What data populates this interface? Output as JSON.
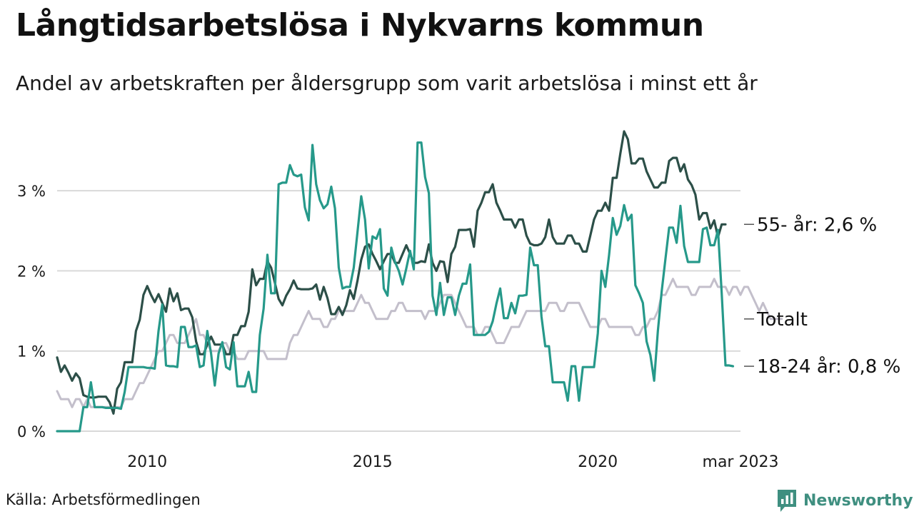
{
  "title": "Långtidsarbetslösa i Nykvarns kommun",
  "subtitle": "Andel av arbetskraften per åldersgrupp som varit arbetslösa i minst ett år",
  "source": "Källa: Arbetsförmedlingen",
  "brand": "Newsworthy",
  "colors": {
    "series_55": "#2c4f48",
    "series_1824": "#26998a",
    "series_total": "#c3bfcb",
    "grid": "#d9d9d9",
    "brand": "#3f8f80"
  },
  "chart_data": {
    "type": "line",
    "x_axis": {
      "start": "2008-01",
      "end": "2023-03",
      "step": "month",
      "tick_labels": [
        {
          "date": "2010-01",
          "label": "2010"
        },
        {
          "date": "2015-01",
          "label": "2015"
        },
        {
          "date": "2020-01",
          "label": "2020"
        },
        {
          "date": "2023-03",
          "label": "mar 2023"
        }
      ]
    },
    "y_axis": {
      "ylim": [
        0,
        3.6
      ],
      "ticks": [
        0,
        1,
        2,
        3
      ],
      "tick_labels": [
        "0 %",
        "1 %",
        "2 %",
        "3 %"
      ],
      "grid": true
    },
    "series": [
      {
        "key": "total",
        "end_label": "Totalt",
        "values": [
          0.5,
          0.4,
          0.4,
          0.4,
          0.3,
          0.4,
          0.4,
          0.3,
          0.4,
          0.3,
          0.3,
          0.3,
          0.3,
          0.3,
          0.3,
          0.3,
          0.3,
          0.3,
          0.4,
          0.4,
          0.4,
          0.5,
          0.6,
          0.6,
          0.7,
          0.8,
          0.9,
          1.0,
          1.0,
          1.1,
          1.2,
          1.2,
          1.1,
          1.1,
          1.1,
          1.2,
          1.3,
          1.4,
          1.2,
          1.2,
          1.1,
          1.0,
          1.0,
          1.0,
          1.1,
          1.1,
          1.0,
          1.0,
          0.9,
          0.9,
          0.9,
          1.0,
          1.0,
          1.0,
          1.0,
          1.0,
          0.9,
          0.9,
          0.9,
          0.9,
          0.9,
          0.9,
          1.1,
          1.2,
          1.2,
          1.3,
          1.4,
          1.5,
          1.4,
          1.4,
          1.4,
          1.3,
          1.3,
          1.4,
          1.4,
          1.5,
          1.5,
          1.5,
          1.5,
          1.5,
          1.6,
          1.7,
          1.6,
          1.6,
          1.5,
          1.4,
          1.4,
          1.4,
          1.4,
          1.5,
          1.5,
          1.6,
          1.6,
          1.5,
          1.5,
          1.5,
          1.5,
          1.5,
          1.4,
          1.5,
          1.5,
          1.5,
          1.6,
          1.7,
          1.7,
          1.7,
          1.6,
          1.5,
          1.4,
          1.3,
          1.3,
          1.3,
          1.2,
          1.2,
          1.3,
          1.3,
          1.2,
          1.1,
          1.1,
          1.1,
          1.2,
          1.3,
          1.3,
          1.3,
          1.4,
          1.5,
          1.5,
          1.5,
          1.5,
          1.5,
          1.5,
          1.6,
          1.6,
          1.6,
          1.5,
          1.5,
          1.6,
          1.6,
          1.6,
          1.6,
          1.5,
          1.4,
          1.3,
          1.3,
          1.3,
          1.4,
          1.4,
          1.3,
          1.3,
          1.3,
          1.3,
          1.3,
          1.3,
          1.3,
          1.2,
          1.2,
          1.3,
          1.3,
          1.4,
          1.4,
          1.5,
          1.7,
          1.7,
          1.8,
          1.9,
          1.8,
          1.8,
          1.8,
          1.8,
          1.7,
          1.7,
          1.8,
          1.8,
          1.8,
          1.8,
          1.9,
          1.8,
          1.8,
          1.8,
          1.7,
          1.8,
          1.8,
          1.7,
          1.8,
          1.8,
          1.7,
          1.6,
          1.5,
          1.6,
          1.5,
          1.4,
          1.4,
          1.4,
          1.4
        ]
      },
      {
        "key": "age_55",
        "end_label": "55- år: 2,6 %",
        "values": [
          0.92,
          0.74,
          0.82,
          0.73,
          0.63,
          0.72,
          0.66,
          0.45,
          0.43,
          0.42,
          0.42,
          0.43,
          0.43,
          0.43,
          0.36,
          0.22,
          0.53,
          0.61,
          0.86,
          0.86,
          0.86,
          1.25,
          1.39,
          1.7,
          1.81,
          1.7,
          1.61,
          1.71,
          1.6,
          1.49,
          1.78,
          1.62,
          1.72,
          1.51,
          1.53,
          1.53,
          1.42,
          1.12,
          0.96,
          0.96,
          1.08,
          1.18,
          1.08,
          1.08,
          1.08,
          0.96,
          0.96,
          1.2,
          1.2,
          1.31,
          1.31,
          1.49,
          2.02,
          1.82,
          1.9,
          1.9,
          2.12,
          2.04,
          1.85,
          1.65,
          1.57,
          1.69,
          1.77,
          1.88,
          1.78,
          1.77,
          1.77,
          1.77,
          1.78,
          1.83,
          1.64,
          1.8,
          1.66,
          1.46,
          1.46,
          1.55,
          1.45,
          1.57,
          1.76,
          1.65,
          1.88,
          2.14,
          2.3,
          2.33,
          2.21,
          2.12,
          2.02,
          2.12,
          2.21,
          2.21,
          2.1,
          2.1,
          2.21,
          2.32,
          2.21,
          2.1,
          2.1,
          2.12,
          2.11,
          2.33,
          2.1,
          2.0,
          2.12,
          2.11,
          1.86,
          2.21,
          2.3,
          2.51,
          2.51,
          2.51,
          2.52,
          2.3,
          2.75,
          2.85,
          2.98,
          2.98,
          3.08,
          2.85,
          2.75,
          2.64,
          2.64,
          2.64,
          2.54,
          2.64,
          2.64,
          2.44,
          2.34,
          2.32,
          2.32,
          2.34,
          2.42,
          2.64,
          2.42,
          2.34,
          2.34,
          2.34,
          2.44,
          2.44,
          2.34,
          2.34,
          2.24,
          2.24,
          2.44,
          2.64,
          2.75,
          2.75,
          2.85,
          2.75,
          3.16,
          3.16,
          3.46,
          3.74,
          3.64,
          3.34,
          3.34,
          3.4,
          3.4,
          3.24,
          3.14,
          3.04,
          3.04,
          3.1,
          3.1,
          3.37,
          3.41,
          3.41,
          3.24,
          3.33,
          3.14,
          3.07,
          2.95,
          2.64,
          2.72,
          2.72,
          2.53,
          2.63,
          2.42,
          2.58,
          2.58
        ]
      },
      {
        "key": "age_18_24",
        "end_label": "18-24 år: 0,8 %",
        "values": [
          0.0,
          0.0,
          0.0,
          0.0,
          0.0,
          0.0,
          0.0,
          0.3,
          0.3,
          0.61,
          0.3,
          0.3,
          0.3,
          0.29,
          0.29,
          0.29,
          0.29,
          0.28,
          0.49,
          0.8,
          0.8,
          0.8,
          0.8,
          0.8,
          0.79,
          0.79,
          0.78,
          1.25,
          1.58,
          0.82,
          0.81,
          0.81,
          0.8,
          1.3,
          1.3,
          1.05,
          1.05,
          1.07,
          0.8,
          0.82,
          1.25,
          0.97,
          0.57,
          0.97,
          1.11,
          0.8,
          0.77,
          1.11,
          0.56,
          0.56,
          0.56,
          0.74,
          0.49,
          0.49,
          1.2,
          1.53,
          2.2,
          1.72,
          1.72,
          3.08,
          3.1,
          3.1,
          3.32,
          3.2,
          3.18,
          3.2,
          2.79,
          2.63,
          3.57,
          3.08,
          2.88,
          2.78,
          2.83,
          3.05,
          2.78,
          2.04,
          1.78,
          1.8,
          1.8,
          2.04,
          2.49,
          2.93,
          2.64,
          2.03,
          2.43,
          2.4,
          2.52,
          1.78,
          1.69,
          2.29,
          2.11,
          2.0,
          1.83,
          2.03,
          2.25,
          2.02,
          3.6,
          3.6,
          3.17,
          2.97,
          1.69,
          1.45,
          1.85,
          1.45,
          1.67,
          1.67,
          1.45,
          1.69,
          1.84,
          1.84,
          2.08,
          1.2,
          1.2,
          1.2,
          1.2,
          1.24,
          1.37,
          1.59,
          1.78,
          1.41,
          1.41,
          1.6,
          1.47,
          1.69,
          1.69,
          1.7,
          2.29,
          2.07,
          2.07,
          1.43,
          1.06,
          1.06,
          0.61,
          0.61,
          0.61,
          0.61,
          0.38,
          0.81,
          0.81,
          0.38,
          0.8,
          0.8,
          0.8,
          0.8,
          1.22,
          2.0,
          1.8,
          2.2,
          2.66,
          2.45,
          2.56,
          2.82,
          2.63,
          2.7,
          1.82,
          1.72,
          1.6,
          1.12,
          0.95,
          0.63,
          1.25,
          1.74,
          2.14,
          2.54,
          2.54,
          2.35,
          2.81,
          2.31,
          2.11,
          2.11,
          2.11,
          2.11,
          2.52,
          2.54,
          2.32,
          2.32,
          2.51,
          1.72,
          0.82,
          0.82,
          0.81
        ]
      }
    ]
  }
}
